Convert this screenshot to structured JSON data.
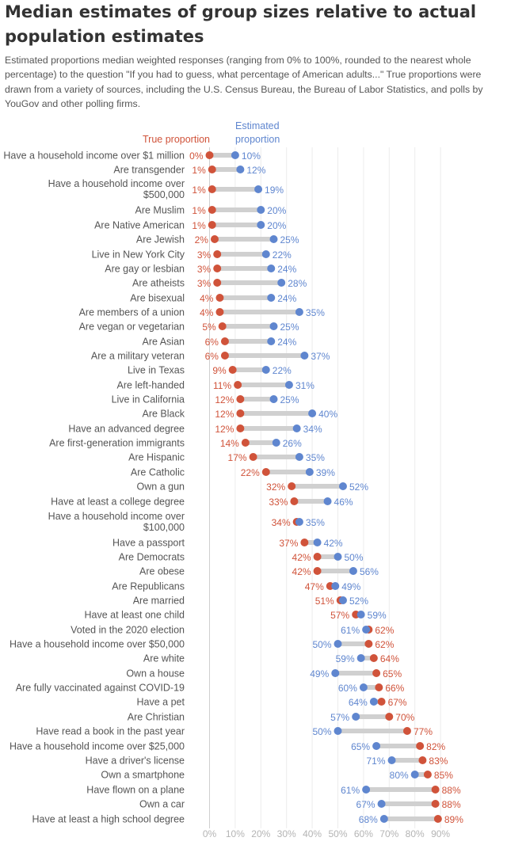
{
  "title": "Median estimates of group sizes relative to actual population estimates",
  "subtitle": "Estimated proportions median weighted responses (ranging from 0% to 100%, rounded to the nearest whole percentage) to the question \"If you had to guess, what percentage of American adults...\" True proportions were drawn from a variety of sources, including the U.S. Census Bureau, the Bureau of Labor Statistics, and polls by YouGov and other polling firms.",
  "colors": {
    "true": "#d0533a",
    "estimated": "#5f86cf",
    "connector": "#d0d0d0",
    "grid": "#ececec",
    "label": "#555555"
  },
  "chart_data": {
    "type": "dumbbell",
    "legend": {
      "true_label": "True proportion",
      "estimated_label": [
        "Estimated",
        "proportion"
      ]
    },
    "xlim": [
      0,
      100
    ],
    "x_ticks": [
      0,
      10,
      20,
      30,
      40,
      50,
      60,
      70,
      80,
      90
    ],
    "x_tick_labels": [
      "0%",
      "10%",
      "20%",
      "30%",
      "40%",
      "50%",
      "60%",
      "70%",
      "80%",
      "90%"
    ],
    "rows": [
      {
        "category": [
          "Have a household income over $1 million"
        ],
        "true": 0,
        "estimated": 10,
        "true_label": "0%",
        "estimated_label": "10%"
      },
      {
        "category": [
          "Are transgender"
        ],
        "true": 1,
        "estimated": 12,
        "true_label": "1%",
        "estimated_label": "12%"
      },
      {
        "category": [
          "Have a household income over",
          "$500,000"
        ],
        "true": 1,
        "estimated": 19,
        "true_label": "1%",
        "estimated_label": "19%"
      },
      {
        "category": [
          "Are Muslim"
        ],
        "true": 1,
        "estimated": 20,
        "true_label": "1%",
        "estimated_label": "20%"
      },
      {
        "category": [
          "Are Native American"
        ],
        "true": 1,
        "estimated": 20,
        "true_label": "1%",
        "estimated_label": "20%"
      },
      {
        "category": [
          "Are Jewish"
        ],
        "true": 2,
        "estimated": 25,
        "true_label": "2%",
        "estimated_label": "25%"
      },
      {
        "category": [
          "Live in New York City"
        ],
        "true": 3,
        "estimated": 22,
        "true_label": "3%",
        "estimated_label": "22%"
      },
      {
        "category": [
          "Are gay or lesbian"
        ],
        "true": 3,
        "estimated": 24,
        "true_label": "3%",
        "estimated_label": "24%"
      },
      {
        "category": [
          "Are atheists"
        ],
        "true": 3,
        "estimated": 28,
        "true_label": "3%",
        "estimated_label": "28%"
      },
      {
        "category": [
          "Are bisexual"
        ],
        "true": 4,
        "estimated": 24,
        "true_label": "4%",
        "estimated_label": "24%"
      },
      {
        "category": [
          "Are members of a union"
        ],
        "true": 4,
        "estimated": 35,
        "true_label": "4%",
        "estimated_label": "35%"
      },
      {
        "category": [
          "Are vegan or vegetarian"
        ],
        "true": 5,
        "estimated": 25,
        "true_label": "5%",
        "estimated_label": "25%"
      },
      {
        "category": [
          "Are Asian"
        ],
        "true": 6,
        "estimated": 24,
        "true_label": "6%",
        "estimated_label": "24%"
      },
      {
        "category": [
          "Are a military veteran"
        ],
        "true": 6,
        "estimated": 37,
        "true_label": "6%",
        "estimated_label": "37%"
      },
      {
        "category": [
          "Live in Texas"
        ],
        "true": 9,
        "estimated": 22,
        "true_label": "9%",
        "estimated_label": "22%"
      },
      {
        "category": [
          "Are left-handed"
        ],
        "true": 11,
        "estimated": 31,
        "true_label": "11%",
        "estimated_label": "31%"
      },
      {
        "category": [
          "Live in California"
        ],
        "true": 12,
        "estimated": 25,
        "true_label": "12%",
        "estimated_label": "25%"
      },
      {
        "category": [
          "Are Black"
        ],
        "true": 12,
        "estimated": 40,
        "true_label": "12%",
        "estimated_label": "40%"
      },
      {
        "category": [
          "Have an advanced degree"
        ],
        "true": 12,
        "estimated": 34,
        "true_label": "12%",
        "estimated_label": "34%"
      },
      {
        "category": [
          "Are first-generation immigrants"
        ],
        "true": 14,
        "estimated": 26,
        "true_label": "14%",
        "estimated_label": "26%"
      },
      {
        "category": [
          "Are Hispanic"
        ],
        "true": 17,
        "estimated": 35,
        "true_label": "17%",
        "estimated_label": "35%"
      },
      {
        "category": [
          "Are Catholic"
        ],
        "true": 22,
        "estimated": 39,
        "true_label": "22%",
        "estimated_label": "39%"
      },
      {
        "category": [
          "Own a gun"
        ],
        "true": 32,
        "estimated": 52,
        "true_label": "32%",
        "estimated_label": "52%"
      },
      {
        "category": [
          "Have at least a college degree"
        ],
        "true": 33,
        "estimated": 46,
        "true_label": "33%",
        "estimated_label": "46%"
      },
      {
        "category": [
          "Have a household income over",
          "$100,000"
        ],
        "true": 34,
        "estimated": 35,
        "true_label": "34%",
        "estimated_label": "35%"
      },
      {
        "category": [
          "Have a passport"
        ],
        "true": 37,
        "estimated": 42,
        "true_label": "37%",
        "estimated_label": "42%"
      },
      {
        "category": [
          "Are Democrats"
        ],
        "true": 42,
        "estimated": 50,
        "true_label": "42%",
        "estimated_label": "50%"
      },
      {
        "category": [
          "Are obese"
        ],
        "true": 42,
        "estimated": 56,
        "true_label": "42%",
        "estimated_label": "56%"
      },
      {
        "category": [
          "Are Republicans"
        ],
        "true": 47,
        "estimated": 49,
        "true_label": "47%",
        "estimated_label": "49%"
      },
      {
        "category": [
          "Are married"
        ],
        "true": 51,
        "estimated": 52,
        "true_label": "51%",
        "estimated_label": "52%"
      },
      {
        "category": [
          "Have at least one child"
        ],
        "true": 57,
        "estimated": 59,
        "true_label": "57%",
        "estimated_label": "59%"
      },
      {
        "category": [
          "Voted in the 2020 election"
        ],
        "true": 62,
        "estimated": 61,
        "true_label": "62%",
        "estimated_label": "61%"
      },
      {
        "category": [
          "Have a household income over $50,000"
        ],
        "true": 62,
        "estimated": 50,
        "true_label": "62%",
        "estimated_label": "50%"
      },
      {
        "category": [
          "Are white"
        ],
        "true": 64,
        "estimated": 59,
        "true_label": "64%",
        "estimated_label": "59%"
      },
      {
        "category": [
          "Own a house"
        ],
        "true": 65,
        "estimated": 49,
        "true_label": "65%",
        "estimated_label": "49%"
      },
      {
        "category": [
          "Are fully vaccinated against COVID-19"
        ],
        "true": 66,
        "estimated": 60,
        "true_label": "66%",
        "estimated_label": "60%"
      },
      {
        "category": [
          "Have a pet"
        ],
        "true": 67,
        "estimated": 64,
        "true_label": "67%",
        "estimated_label": "64%"
      },
      {
        "category": [
          "Are Christian"
        ],
        "true": 70,
        "estimated": 57,
        "true_label": "70%",
        "estimated_label": "57%"
      },
      {
        "category": [
          "Have read a book in the past year"
        ],
        "true": 77,
        "estimated": 50,
        "true_label": "77%",
        "estimated_label": "50%"
      },
      {
        "category": [
          "Have a household income over $25,000"
        ],
        "true": 82,
        "estimated": 65,
        "true_label": "82%",
        "estimated_label": "65%"
      },
      {
        "category": [
          "Have a driver's license"
        ],
        "true": 83,
        "estimated": 71,
        "true_label": "83%",
        "estimated_label": "71%"
      },
      {
        "category": [
          "Own a smartphone"
        ],
        "true": 85,
        "estimated": 80,
        "true_label": "85%",
        "estimated_label": "80%"
      },
      {
        "category": [
          "Have flown on a plane"
        ],
        "true": 88,
        "estimated": 61,
        "true_label": "88%",
        "estimated_label": "61%"
      },
      {
        "category": [
          "Own a car"
        ],
        "true": 88,
        "estimated": 67,
        "true_label": "88%",
        "estimated_label": "67%"
      },
      {
        "category": [
          "Have at least a high school degree"
        ],
        "true": 89,
        "estimated": 68,
        "true_label": "89%",
        "estimated_label": "68%"
      }
    ]
  }
}
